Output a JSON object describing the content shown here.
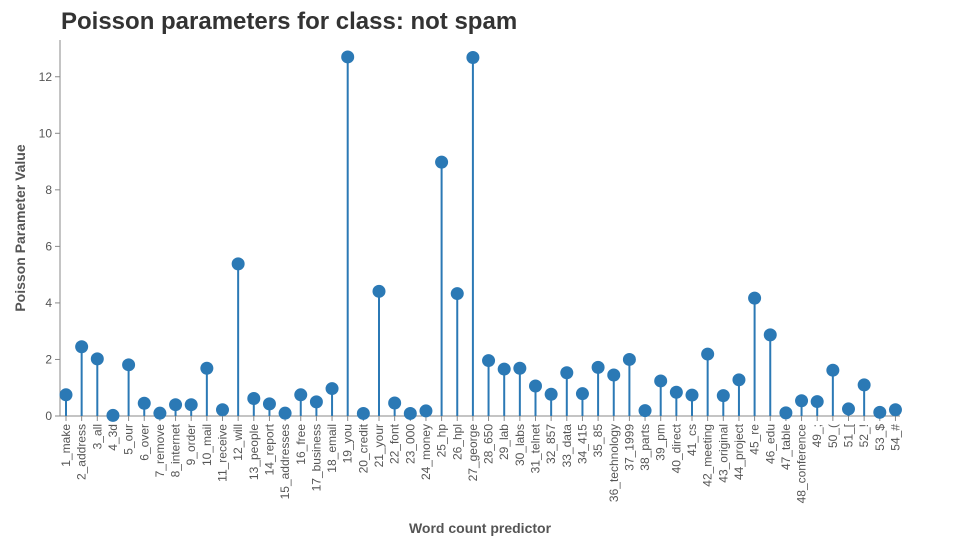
{
  "chart_data": {
    "type": "lollipop",
    "title": "Poisson parameters for class: not spam",
    "xlabel": "Word count predictor",
    "ylabel": "Poisson Parameter Value",
    "ylim": [
      0,
      13.3
    ],
    "yticks": [
      0,
      2,
      4,
      6,
      8,
      10,
      12
    ],
    "grid": false,
    "color": "#2b79b5",
    "categories": [
      "1_make",
      "2_address",
      "3_all",
      "4_3d",
      "5_our",
      "6_over",
      "7_remove",
      "8_internet",
      "9_order",
      "10_mail",
      "11_receive",
      "12_will",
      "13_people",
      "14_report",
      "15_addresses",
      "16_free",
      "17_business",
      "18_email",
      "19_you",
      "20_credit",
      "21_your",
      "22_font",
      "23_000",
      "24_money",
      "25_hp",
      "26_hpl",
      "27_george",
      "28_650",
      "29_lab",
      "30_labs",
      "31_telnet",
      "32_857",
      "33_data",
      "34_415",
      "35_85",
      "36_technology",
      "37_1999",
      "38_parts",
      "39_pm",
      "40_direct",
      "41_cs",
      "42_meeting",
      "43_original",
      "44_project",
      "45_re",
      "46_edu",
      "47_table",
      "48_conference",
      "49_;",
      "50_(",
      "51_[",
      "52_!",
      "53_$",
      "54_#"
    ],
    "values": [
      0.75,
      2.45,
      2.02,
      0.02,
      1.81,
      0.45,
      0.1,
      0.4,
      0.4,
      1.69,
      0.22,
      5.38,
      0.62,
      0.43,
      0.1,
      0.75,
      0.5,
      0.97,
      12.7,
      0.09,
      4.41,
      0.46,
      0.09,
      0.18,
      8.98,
      4.33,
      12.68,
      1.96,
      1.66,
      1.69,
      1.06,
      0.77,
      1.53,
      0.79,
      1.72,
      1.45,
      2.0,
      0.19,
      1.24,
      0.84,
      0.74,
      2.19,
      0.72,
      1.28,
      4.17,
      2.87,
      0.11,
      0.54,
      0.51,
      1.62,
      0.25,
      1.1,
      0.13,
      0.22
    ]
  }
}
